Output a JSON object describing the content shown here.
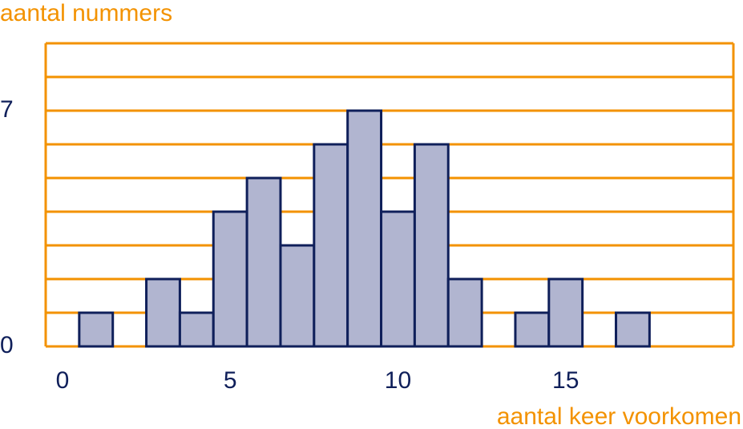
{
  "chart_data": {
    "type": "bar",
    "title": "aantal nummers",
    "x_label": "aantal keer voorkomen",
    "x": [
      1,
      3,
      4,
      5,
      6,
      7,
      8,
      9,
      10,
      11,
      12,
      14,
      15,
      17
    ],
    "values": [
      1,
      2,
      1,
      4,
      5,
      3,
      6,
      7,
      4,
      6,
      2,
      1,
      2,
      1
    ],
    "bar_width": 1,
    "color": "#b1b5d0",
    "edge_color": "#0f1f5a",
    "grid_color": "#f39200",
    "xlim": [
      -0.5,
      20
    ],
    "xticks": [
      0,
      5,
      10,
      15
    ],
    "ylim": [
      0,
      9
    ],
    "yticks": [
      0,
      7
    ],
    "minor_yticks": [
      1,
      2,
      3,
      4,
      5,
      6,
      7,
      8,
      9
    ],
    "grid": true
  }
}
